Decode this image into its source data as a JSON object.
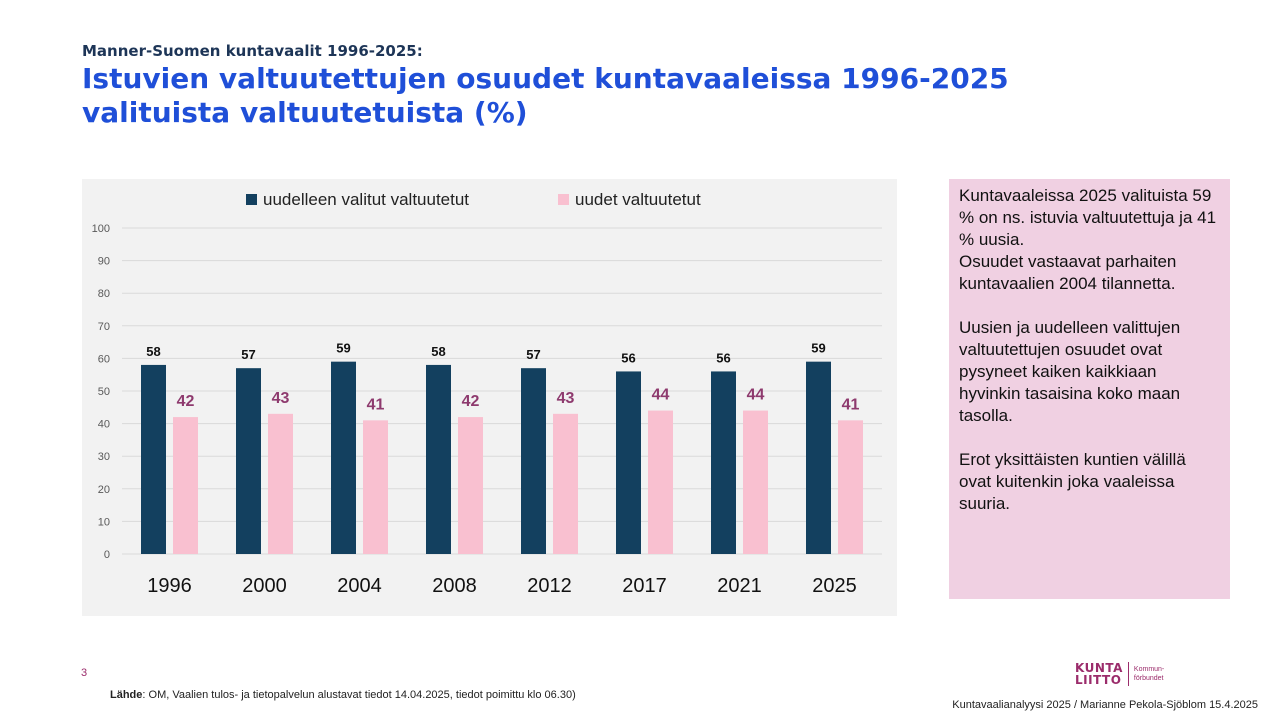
{
  "header": {
    "subtitle": "Manner-Suomen kuntavaalit 1996-2025:",
    "title_line1": "Istuvien valtuutettujen osuudet kuntavaaleissa 1996-2025",
    "title_line2": "valituista valtuutetuista (%)"
  },
  "colors": {
    "series1": "#13405f",
    "series2": "#f9c0d0",
    "label2": "#8e3a6e",
    "note_bg": "#f0d0e2"
  },
  "chart_data": {
    "type": "bar",
    "title": "",
    "xlabel": "",
    "ylabel": "",
    "ylim": [
      0,
      100
    ],
    "yticks": [
      "0",
      "10",
      "20",
      "30",
      "40",
      "50",
      "60",
      "70",
      "80",
      "90",
      "100"
    ],
    "grid": true,
    "legend_position": "top-center",
    "categories": [
      "1996",
      "2000",
      "2004",
      "2008",
      "2012",
      "2017",
      "2021",
      "2025"
    ],
    "series": [
      {
        "name": "uudelleen valitut valtuutetut",
        "values": [
          58,
          57,
          59,
          58,
          57,
          56,
          56,
          59
        ]
      },
      {
        "name": "uudet valtuutetut",
        "values": [
          42,
          43,
          41,
          42,
          43,
          44,
          44,
          41
        ]
      }
    ]
  },
  "note": {
    "para1": "Kuntavaaleissa 2025 valituista 59 % on ns. istuvia valtuutettuja ja 41 % uusia.\nOsuudet vastaavat parhaiten kuntavaalien 2004 tilannetta.",
    "para2": "Uusien ja uudelleen valittujen valtuutettujen osuudet ovat pysyneet kaiken kaikkiaan hyvinkin tasaisina koko maan tasolla.",
    "para3": "Erot yksittäisten kuntien välillä ovat kuitenkin joka vaaleissa suuria."
  },
  "footer": {
    "page_number": "3",
    "source_label": "Lähde",
    "source_text": ": OM, Vaalien tulos- ja tietopalvelun alustavat tiedot 14.04.2025, tiedot poimittu klo 06.30)",
    "credit": "Kuntavaalianalyysi 2025 / Marianne Pekola-Sjöblom 15.4.2025",
    "logo_main_1": "KUNTA",
    "logo_main_2": "LIITTO",
    "logo_sub_1": "Kommun-",
    "logo_sub_2": "förbundet"
  }
}
